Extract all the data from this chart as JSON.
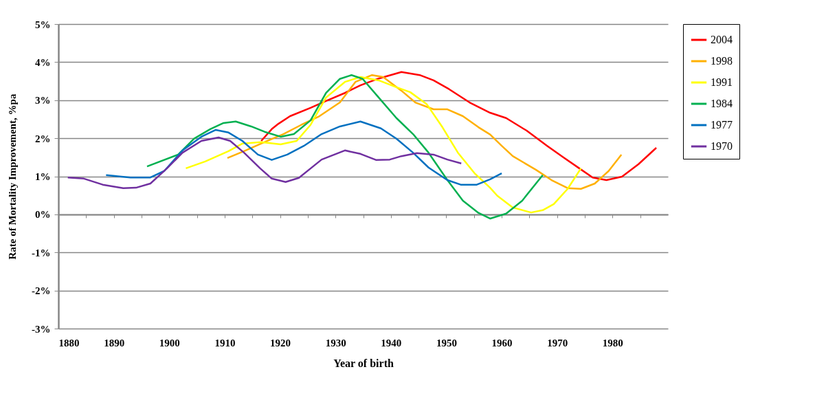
{
  "chart_data": {
    "type": "line",
    "xlabel": "Year of birth",
    "ylabel": "Rate of Mortality  Improvement, %pa",
    "xlim": [
      1880,
      1990
    ],
    "xticks": [
      1880,
      {
        "value": 1885,
        "label": null
      },
      1890,
      {
        "value": 1895,
        "label": null
      },
      1900,
      {
        "value": 1905,
        "label": null
      },
      1910,
      {
        "value": 1915,
        "label": null
      },
      1920,
      {
        "value": 1925,
        "label": null
      },
      1930,
      {
        "value": 1935,
        "label": null
      },
      1940,
      {
        "value": 1945,
        "label": null
      },
      1950,
      {
        "value": 1955,
        "label": null
      },
      1960,
      {
        "value": 1965,
        "label": null
      },
      1970,
      {
        "value": 1975,
        "label": null
      },
      1980,
      {
        "value": 1985,
        "label": null
      }
    ],
    "ylim": [
      -3,
      5
    ],
    "yticks": [
      {
        "value": -3,
        "label": "-3%"
      },
      {
        "value": -2,
        "label": "-2%"
      },
      {
        "value": -1,
        "label": "-1%"
      },
      {
        "value": 0,
        "label": "0%"
      },
      {
        "value": 1,
        "label": "1%"
      },
      {
        "value": 2,
        "label": "2%"
      },
      {
        "value": 3,
        "label": "3%"
      },
      {
        "value": 4,
        "label": "4%"
      },
      {
        "value": 5,
        "label": "5%"
      }
    ],
    "grid": "y",
    "legend": "right",
    "marker": "none",
    "line_style": "solid",
    "series": [
      {
        "name": "2004",
        "color": "#ff0000",
        "x": [
          1916.6,
          1918.5,
          1919.7,
          1921.8,
          1925.5,
          1928.3,
          1931.7,
          1934.5,
          1937.8,
          1941.9,
          1945.2,
          1947.7,
          1950.5,
          1954.2,
          1957.9,
          1960.8,
          1964.5,
          1968.2,
          1971.1,
          1974,
          1976.4,
          1978.9,
          1981.7,
          1984.7,
          1987.9
        ],
        "values": [
          1.93,
          2.24,
          2.38,
          2.58,
          2.8,
          2.98,
          3.19,
          3.39,
          3.57,
          3.74,
          3.66,
          3.52,
          3.29,
          2.94,
          2.67,
          2.53,
          2.2,
          1.8,
          1.5,
          1.21,
          0.97,
          0.9,
          0.99,
          1.32,
          1.75
        ]
      },
      {
        "name": "1998",
        "color": "#ffb000",
        "x": [
          1910.5,
          1913.5,
          1917.5,
          1920.6,
          1923.8,
          1927.1,
          1930.8,
          1933.6,
          1936.6,
          1938.6,
          1941.9,
          1944.4,
          1947.7,
          1950.2,
          1953,
          1955.8,
          1957.9,
          1960,
          1962,
          1966.2,
          1969,
          1971.9,
          1974.3,
          1976.8,
          1979.3,
          1981.6
        ],
        "values": [
          1.48,
          1.66,
          1.92,
          2.11,
          2.35,
          2.58,
          2.94,
          3.48,
          3.66,
          3.61,
          3.25,
          2.94,
          2.76,
          2.76,
          2.58,
          2.29,
          2.1,
          1.8,
          1.53,
          1.17,
          0.9,
          0.69,
          0.67,
          0.81,
          1.14,
          1.57
        ]
      },
      {
        "name": "1991",
        "color": "#ffff00",
        "x": [
          1903,
          1906.5,
          1910.7,
          1913.2,
          1916.6,
          1920.1,
          1923,
          1925.5,
          1928.3,
          1931.7,
          1934.5,
          1937.8,
          1941,
          1943.5,
          1946.5,
          1949.3,
          1952.1,
          1955.1,
          1957.9,
          1959.2,
          1962,
          1965.3,
          1967.4,
          1969.4,
          1971.9,
          1974.3
        ],
        "values": [
          1.21,
          1.39,
          1.66,
          1.86,
          1.9,
          1.84,
          1.93,
          2.35,
          3.07,
          3.48,
          3.61,
          3.52,
          3.34,
          3.21,
          2.89,
          2.29,
          1.62,
          1.08,
          0.7,
          0.49,
          0.18,
          0.05,
          0.11,
          0.27,
          0.67,
          1.21
        ]
      },
      {
        "name": "1984",
        "color": "#00b050",
        "x": [
          1896,
          1901.6,
          1904.5,
          1907.4,
          1909.8,
          1912,
          1914.8,
          1917.2,
          1920.1,
          1922.5,
          1925.5,
          1928.3,
          1930.8,
          1932.9,
          1934.9,
          1937.8,
          1941,
          1944,
          1946.8,
          1950.2,
          1953,
          1955.8,
          1957.9,
          1960.8,
          1963.7,
          1967.4
        ],
        "values": [
          1.26,
          1.57,
          1.99,
          2.24,
          2.4,
          2.44,
          2.31,
          2.17,
          2.04,
          2.11,
          2.47,
          3.19,
          3.56,
          3.66,
          3.56,
          3.07,
          2.53,
          2.11,
          1.62,
          0.9,
          0.36,
          0.04,
          -0.11,
          0.02,
          0.36,
          1.03
        ]
      },
      {
        "name": "1977",
        "color": "#0070c0",
        "x": [
          1888.6,
          1893,
          1896.6,
          1899.1,
          1902.4,
          1905.8,
          1908.4,
          1910.7,
          1913.2,
          1916,
          1918.5,
          1921.3,
          1924.3,
          1927.5,
          1930.8,
          1934.5,
          1938.2,
          1941,
          1944,
          1946.8,
          1950.2,
          1952.6,
          1955.5,
          1957.9,
          1960
        ],
        "values": [
          1.03,
          0.97,
          0.97,
          1.14,
          1.68,
          2.04,
          2.22,
          2.15,
          1.93,
          1.57,
          1.43,
          1.57,
          1.8,
          2.11,
          2.31,
          2.44,
          2.26,
          1.99,
          1.62,
          1.23,
          0.9,
          0.78,
          0.78,
          0.92,
          1.08
        ]
      },
      {
        "name": "1970",
        "color": "#7030a0",
        "x": [
          1881.7,
          1884.6,
          1888,
          1891.7,
          1894,
          1896.6,
          1899.6,
          1902.4,
          1905.8,
          1908.9,
          1911,
          1913.5,
          1916.4,
          1918.5,
          1921,
          1923.4,
          1927.5,
          1931.7,
          1934.5,
          1937.3,
          1939.8,
          1941.9,
          1944.7,
          1947.7,
          1950.2,
          1952.7
        ],
        "values": [
          0.97,
          0.94,
          0.78,
          0.69,
          0.7,
          0.81,
          1.21,
          1.62,
          1.93,
          2.02,
          1.93,
          1.62,
          1.21,
          0.94,
          0.85,
          0.96,
          1.44,
          1.68,
          1.59,
          1.43,
          1.44,
          1.53,
          1.61,
          1.57,
          1.44,
          1.34
        ]
      }
    ]
  }
}
